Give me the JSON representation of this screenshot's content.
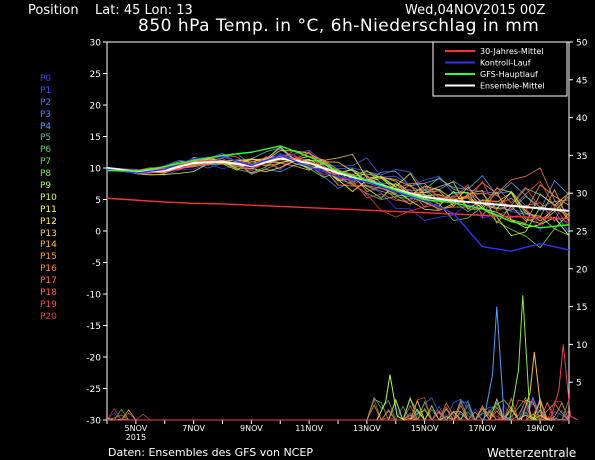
{
  "header": {
    "position_label": "Position",
    "lat_lon": "Lat: 45 Lon: 13",
    "run": "Wed,04NOV2015 00Z"
  },
  "chart_data": {
    "type": "line",
    "title": "850 hPa Temp. in °C, 6h-Niederschlag in mm",
    "xlabel": "",
    "ylabel": "",
    "x_range": [
      "2015-11-04T00:00Z",
      "2015-11-20T00:00Z"
    ],
    "x_tick_labels": [
      {
        "x": "2015-11-05T00:00Z",
        "label": "5NOV",
        "sub": "2015"
      },
      {
        "x": "2015-11-07T00:00Z",
        "label": "7NOV"
      },
      {
        "x": "2015-11-09T00:00Z",
        "label": "9NOV"
      },
      {
        "x": "2015-11-11T00:00Z",
        "label": "11NOV"
      },
      {
        "x": "2015-11-13T00:00Z",
        "label": "13NOV"
      },
      {
        "x": "2015-11-15T00:00Z",
        "label": "15NOV"
      },
      {
        "x": "2015-11-17T00:00Z",
        "label": "17NOV"
      },
      {
        "x": "2015-11-19T00:00Z",
        "label": "19NOV"
      }
    ],
    "y_left": {
      "ylim": [
        -30,
        30
      ],
      "ticks": [
        30,
        25,
        20,
        15,
        10,
        5,
        0,
        -5,
        -10,
        -15,
        -20,
        -25,
        -30
      ],
      "unit": "°C"
    },
    "y_right": {
      "ylim": [
        0,
        50
      ],
      "ticks": [
        50,
        45,
        40,
        35,
        30,
        25,
        20,
        15,
        10,
        5
      ],
      "unit": "mm"
    },
    "grid": false,
    "legend_position": "top-right",
    "legend": [
      {
        "name": "30-Jahres-Mittel",
        "color": "#ff3030"
      },
      {
        "name": "Kontroll-Lauf",
        "color": "#3030ff"
      },
      {
        "name": "GFS-Hauptlauf",
        "color": "#30ff30"
      },
      {
        "name": "Ensemble-Mittel",
        "color": "#ffffff"
      }
    ],
    "x_days": [
      0,
      1,
      2,
      3,
      4,
      5,
      6,
      7,
      8,
      9,
      10,
      11,
      12,
      13,
      14,
      15,
      16
    ],
    "series": [
      {
        "name": "30-Jahres-Mittel",
        "color": "#ff3030",
        "axis": "left",
        "values": [
          5.2,
          4.9,
          4.6,
          4.4,
          4.3,
          4.1,
          3.9,
          3.7,
          3.5,
          3.3,
          3.1,
          2.9,
          2.7,
          2.5,
          2.3,
          2.1,
          2.0
        ]
      },
      {
        "name": "Ensemble-Mittel",
        "color": "#ffffff",
        "axis": "left",
        "values": [
          10.0,
          9.4,
          9.6,
          10.8,
          11.0,
          10.3,
          11.5,
          10.8,
          9.2,
          8.0,
          6.6,
          5.4,
          4.8,
          4.4,
          4.0,
          3.6,
          3.2
        ]
      },
      {
        "name": "Kontroll-Lauf",
        "color": "#3030ff",
        "axis": "left",
        "values": [
          9.8,
          9.2,
          9.8,
          11.5,
          11.8,
          10.4,
          12.0,
          10.2,
          8.6,
          7.8,
          6.2,
          4.8,
          2.8,
          -2.5,
          -3.2,
          -2.0,
          -3.0
        ]
      },
      {
        "name": "GFS-Hauptlauf",
        "color": "#30ff30",
        "axis": "left",
        "values": [
          9.6,
          9.5,
          10.2,
          11.2,
          12.0,
          12.5,
          13.5,
          11.8,
          9.5,
          8.0,
          6.5,
          5.0,
          4.5,
          3.5,
          1.5,
          0.5,
          1.0
        ]
      }
    ],
    "members": [
      "P0",
      "P1",
      "P2",
      "P3",
      "P4",
      "P5",
      "P6",
      "P7",
      "P8",
      "P9",
      "P10",
      "P11",
      "P12",
      "P13",
      "P14",
      "P15",
      "P16",
      "P17",
      "P18",
      "P19",
      "P20"
    ],
    "member_colors": [
      "#3a3aff",
      "#4455ff",
      "#4f6cff",
      "#4f86ff",
      "#4fa0ff",
      "#5fc0a8",
      "#66d066",
      "#66dd55",
      "#88ee44",
      "#aaff44",
      "#ddff44",
      "#ffff44",
      "#ffee44",
      "#ffd544",
      "#ffbb44",
      "#ff9f44",
      "#ff8844",
      "#ff7044",
      "#ff5c44",
      "#ff4a55",
      "#ee3c55"
    ],
    "precip_peaks": [
      {
        "member": "P4",
        "x": 13.5,
        "mm": 15
      },
      {
        "member": "P8",
        "x": 14.4,
        "mm": 16.5
      },
      {
        "member": "P14",
        "x": 14.8,
        "mm": 9
      },
      {
        "member": "P20",
        "x": 15.8,
        "mm": 10
      },
      {
        "member": "P9",
        "x": 9.8,
        "mm": 6
      }
    ]
  },
  "footer": {
    "source": "Daten: Ensembles des GFS von NCEP",
    "brand": "Wetterzentrale"
  }
}
